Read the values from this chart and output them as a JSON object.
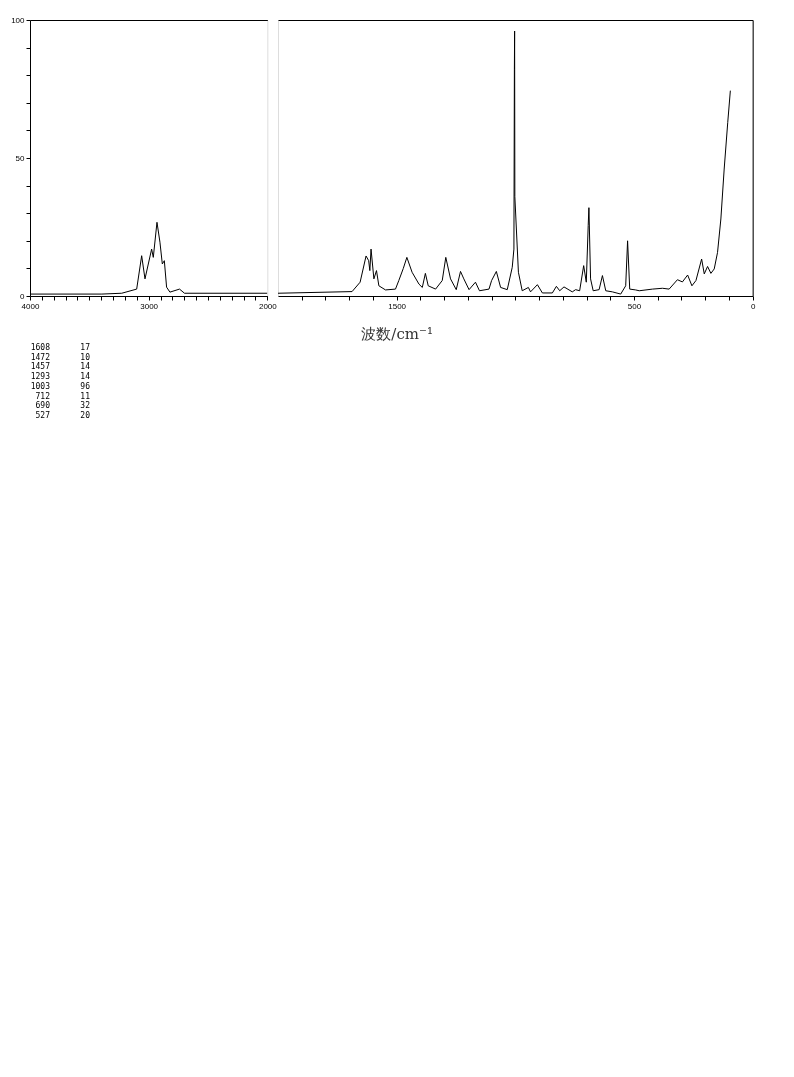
{
  "chart_data": [
    {
      "type": "line",
      "xlim": [
        4000,
        2000
      ],
      "ylim": [
        0,
        100
      ],
      "xticks": [
        4000,
        {
          "value": 3900,
          "label": null
        },
        {
          "value": 3800,
          "label": null
        },
        {
          "value": 3700,
          "label": null
        },
        {
          "value": 3600,
          "label": null
        },
        {
          "value": 3500,
          "label": null
        },
        {
          "value": 3400,
          "label": null
        },
        {
          "value": 3300,
          "label": null
        },
        {
          "value": 3200,
          "label": null
        },
        {
          "value": 3100,
          "label": null
        },
        3000,
        {
          "value": 2900,
          "label": null
        },
        {
          "value": 2800,
          "label": null
        },
        {
          "value": 2700,
          "label": null
        },
        {
          "value": 2600,
          "label": null
        },
        {
          "value": 2500,
          "label": null
        },
        {
          "value": 2400,
          "label": null
        },
        {
          "value": 2300,
          "label": null
        },
        {
          "value": 2200,
          "label": null
        },
        {
          "value": 2100,
          "label": null
        },
        2000
      ],
      "yticks": [
        0,
        {
          "value": 10,
          "label": null
        },
        {
          "value": 20,
          "label": null
        },
        {
          "value": 30,
          "label": null
        },
        {
          "value": 40,
          "label": null
        },
        50,
        {
          "value": 60,
          "label": null
        },
        {
          "value": 70,
          "label": null
        },
        {
          "value": 80,
          "label": null
        },
        {
          "value": 90,
          "label": null
        },
        100
      ],
      "grid": false,
      "legend": false,
      "marker": "none",
      "line_style": "solid",
      "series": [
        {
          "color": "#000000",
          "x": [
            4000,
            3395,
            3227,
            3101,
            3059,
            3031,
            2975,
            2961,
            2930,
            2905,
            2885,
            2868,
            2849,
            2821,
            2740,
            2698,
            2000
          ],
          "values": [
            0.7,
            0.7,
            1.0,
            2.5,
            14.6,
            6.2,
            17,
            14,
            26.7,
            19.5,
            11.6,
            12.8,
            3.2,
            1.4,
            2.5,
            1.0,
            1.0
          ]
        }
      ],
      "annotations": [
        "1608 17",
        "1472 10",
        "1457 14",
        "1293 14",
        "1003 96",
        "712 11",
        "690 32",
        "527 20"
      ]
    },
    {
      "type": "line",
      "xlabel": "波数/cm⁻¹",
      "xlim": [
        2000,
        0
      ],
      "ylim": [
        0,
        100
      ],
      "tick_labels": "x",
      "xticks": [
        {
          "value": 1900,
          "label": null
        },
        {
          "value": 1800,
          "label": null
        },
        {
          "value": 1700,
          "label": null
        },
        {
          "value": 1600,
          "label": null
        },
        1500,
        {
          "value": 1400,
          "label": null
        },
        {
          "value": 1300,
          "label": null
        },
        {
          "value": 1200,
          "label": null
        },
        {
          "value": 1100,
          "label": null
        },
        {
          "value": 1000,
          "label": null
        },
        {
          "value": 900,
          "label": null
        },
        {
          "value": 800,
          "label": null
        },
        {
          "value": 700,
          "label": null
        },
        {
          "value": 600,
          "label": null
        },
        500,
        {
          "value": 400,
          "label": null
        },
        {
          "value": 300,
          "label": null
        },
        {
          "value": 200,
          "label": null
        },
        {
          "value": 100,
          "label": null
        },
        0
      ],
      "grid": false,
      "legend": false,
      "marker": "none",
      "line_style": "solid",
      "series": [
        {
          "color": "#000000",
          "x": [
            2000,
            1688,
            1654,
            1629,
            1618,
            1613,
            1608,
            1596,
            1585,
            1575,
            1547,
            1505,
            1491,
            1472,
            1457,
            1435,
            1406,
            1392,
            1379,
            1367,
            1336,
            1308,
            1293,
            1273,
            1249,
            1231,
            1217,
            1195,
            1168,
            1151,
            1111,
            1100,
            1080,
            1062,
            1034,
            1013,
            1006,
            1004,
            1003,
            1002,
            987,
            971,
            945,
            936,
            907,
            886,
            844,
            827,
            813,
            795,
            760,
            746,
            729,
            712,
            701,
            693,
            690,
            683,
            672,
            647,
            633,
            619,
            591,
            556,
            535,
            527,
            518,
            493,
            478,
            422,
            380,
            352,
            317,
            296,
            274,
            256,
            239,
            215,
            204,
            190,
            176,
            162,
            148,
            134,
            120,
            105,
            94
          ],
          "values": [
            1.0,
            1.6,
            5,
            14.5,
            12.8,
            9.2,
            17,
            6.2,
            9.2,
            3.7,
            2.2,
            2.5,
            5.6,
            10,
            14,
            8.6,
            4.3,
            3.1,
            8.2,
            3.7,
            2.5,
            5.6,
            14,
            6.2,
            2.3,
            8.9,
            6.2,
            2.3,
            5,
            1.9,
            2.5,
            5.6,
            8.9,
            3.1,
            2.3,
            10.4,
            17,
            82,
            96,
            36,
            8.6,
            1.9,
            3.1,
            1.5,
            4.1,
            1.1,
            1.1,
            3.5,
            1.9,
            3.3,
            1.5,
            2.3,
            1.9,
            11,
            5,
            25.5,
            32,
            6.2,
            1.9,
            2.3,
            7.4,
            1.9,
            1.5,
            0.7,
            3.7,
            20,
            2.5,
            2.2,
            1.9,
            2.5,
            2.8,
            2.5,
            5.9,
            5.1,
            7.6,
            3.7,
            5.6,
            13.4,
            8,
            10.7,
            8.2,
            9.8,
            15.8,
            27.9,
            46,
            62.9,
            74.4
          ]
        }
      ]
    }
  ]
}
